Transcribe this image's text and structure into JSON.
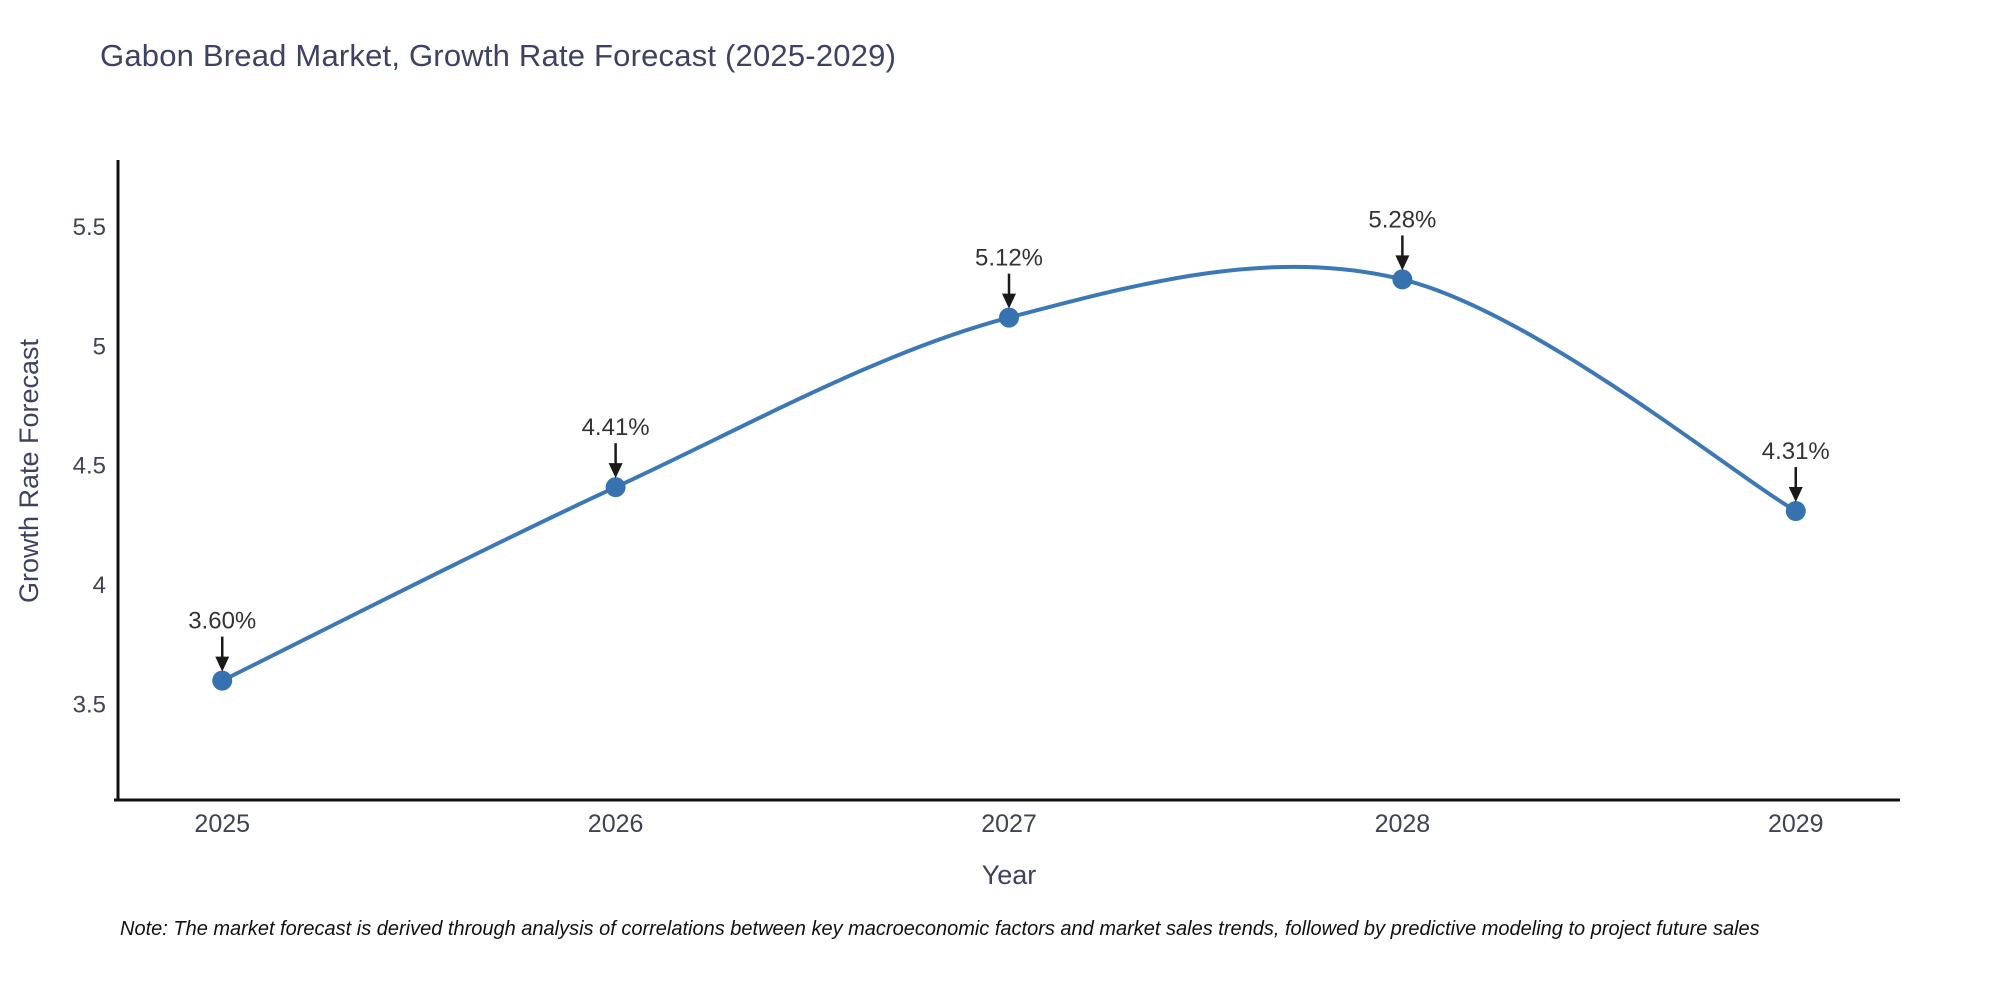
{
  "note": "Note: The market forecast is derived through analysis of correlations between key macroeconomic factors and market sales trends, followed by predictive modeling to project future sales",
  "chart_data": {
    "type": "line",
    "title": "Gabon Bread Market, Growth Rate Forecast (2025-2029)",
    "xlabel": "Year",
    "ylabel": "Growth Rate Forecast",
    "x": [
      2025,
      2026,
      2027,
      2028,
      2029
    ],
    "values": [
      3.6,
      4.41,
      5.12,
      5.28,
      4.31
    ],
    "point_labels": [
      "3.60%",
      "4.41%",
      "5.12%",
      "5.28%",
      "4.31%"
    ],
    "xticks": [
      2025,
      2026,
      2027,
      2028,
      2029
    ],
    "xtick_labels": [
      "2025",
      "2026",
      "2027",
      "2028",
      "2029"
    ],
    "yticks": [
      3.5,
      4,
      4.5,
      5,
      5.5
    ],
    "ytick_labels": [
      "3.5",
      "4",
      "4.5",
      "5",
      "5.5"
    ],
    "xlim": [
      2024.735,
      2029.265
    ],
    "ylim": [
      3.1,
      5.78
    ],
    "grid": "off",
    "legend": "none",
    "line_shape": "spline",
    "colors": {
      "line": "#3b78b5",
      "marker": "#3672b0",
      "axis": "#111111",
      "tick_label": "#3f4454",
      "annotation_text": "#333333",
      "annotation_arrow": "#1a1a1a"
    }
  }
}
